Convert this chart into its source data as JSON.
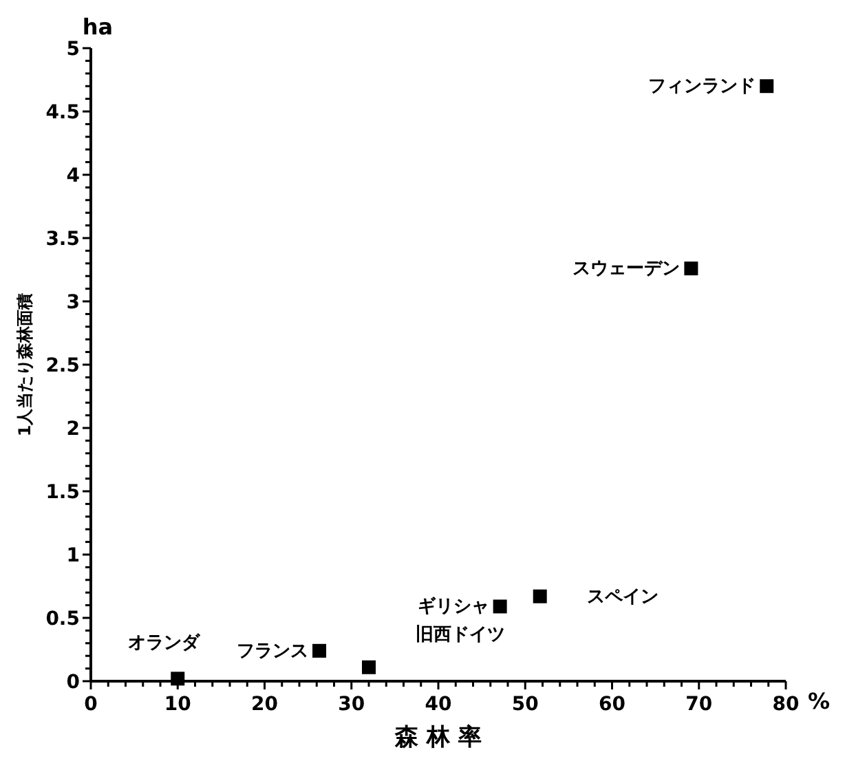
{
  "chart_data": {
    "type": "scatter",
    "xlabel": "森 林 率",
    "ylabel": "1人当たり森林面積",
    "series": [
      {
        "color": "#000000",
        "x": [
          77.8,
          69.1,
          51.7,
          47.1,
          26.3,
          32,
          10
        ],
        "values": [
          4.7,
          3.26,
          0.67,
          0.59,
          0.24,
          0.11,
          0.02
        ]
      }
    ],
    "marker": "square",
    "grid": false,
    "xlim": [
      0,
      80
    ],
    "ylim": [
      0,
      5
    ],
    "xticks": [
      0,
      {
        "value": 2,
        "label": null
      },
      {
        "value": 4,
        "label": null
      },
      {
        "value": 6,
        "label": null
      },
      {
        "value": 8,
        "label": null
      },
      10,
      {
        "value": 12,
        "label": null
      },
      {
        "value": 14,
        "label": null
      },
      {
        "value": 16,
        "label": null
      },
      {
        "value": 18,
        "label": null
      },
      20,
      {
        "value": 22,
        "label": null
      },
      {
        "value": 24,
        "label": null
      },
      {
        "value": 26,
        "label": null
      },
      {
        "value": 28,
        "label": null
      },
      30,
      {
        "value": 32,
        "label": null
      },
      {
        "value": 34,
        "label": null
      },
      {
        "value": 36,
        "label": null
      },
      {
        "value": 38,
        "label": null
      },
      40,
      {
        "value": 42,
        "label": null
      },
      {
        "value": 44,
        "label": null
      },
      {
        "value": 46,
        "label": null
      },
      {
        "value": 48,
        "label": null
      },
      50,
      {
        "value": 52,
        "label": null
      },
      {
        "value": 54,
        "label": null
      },
      {
        "value": 56,
        "label": null
      },
      {
        "value": 58,
        "label": null
      },
      60,
      {
        "value": 62,
        "label": null
      },
      {
        "value": 64,
        "label": null
      },
      {
        "value": 66,
        "label": null
      },
      {
        "value": 68,
        "label": null
      },
      70,
      {
        "value": 72,
        "label": null
      },
      {
        "value": 74,
        "label": null
      },
      {
        "value": 76,
        "label": null
      },
      {
        "value": 78,
        "label": null
      },
      80
    ],
    "yticks": [
      0,
      {
        "value": 0.1,
        "label": null
      },
      {
        "value": 0.2,
        "label": null
      },
      {
        "value": 0.3,
        "label": null
      },
      {
        "value": 0.4,
        "label": null
      },
      0.5,
      {
        "value": 0.6,
        "label": null
      },
      {
        "value": 0.7,
        "label": null
      },
      {
        "value": 0.8,
        "label": null
      },
      {
        "value": 0.9,
        "label": null
      },
      1,
      {
        "value": 1.1,
        "label": null
      },
      {
        "value": 1.2,
        "label": null
      },
      {
        "value": 1.3,
        "label": null
      },
      {
        "value": 1.4,
        "label": null
      },
      1.5,
      {
        "value": 1.6,
        "label": null
      },
      {
        "value": 1.7,
        "label": null
      },
      {
        "value": 1.8,
        "label": null
      },
      {
        "value": 1.9,
        "label": null
      },
      2,
      {
        "value": 2.1,
        "label": null
      },
      {
        "value": 2.2,
        "label": null
      },
      {
        "value": 2.3,
        "label": null
      },
      {
        "value": 2.4,
        "label": null
      },
      2.5,
      {
        "value": 2.6,
        "label": null
      },
      {
        "value": 2.7,
        "label": null
      },
      {
        "value": 2.8,
        "label": null
      },
      {
        "value": 2.9,
        "label": null
      },
      3,
      {
        "value": 3.1,
        "label": null
      },
      {
        "value": 3.2,
        "label": null
      },
      {
        "value": 3.3,
        "label": null
      },
      {
        "value": 3.4,
        "label": null
      },
      3.5,
      {
        "value": 3.6,
        "label": null
      },
      {
        "value": 3.7,
        "label": null
      },
      {
        "value": 3.8,
        "label": null
      },
      {
        "value": 3.9,
        "label": null
      },
      4,
      {
        "value": 4.1,
        "label": null
      },
      {
        "value": 4.2,
        "label": null
      },
      {
        "value": 4.3,
        "label": null
      },
      {
        "value": 4.4,
        "label": null
      },
      4.5,
      {
        "value": 4.6,
        "label": null
      },
      {
        "value": 4.7,
        "label": null
      },
      {
        "value": 4.8,
        "label": null
      },
      {
        "value": 4.9,
        "label": null
      },
      5
    ],
    "annotations": [
      {
        "text": "フィンランド",
        "x": 77.8,
        "y": 4.7
      },
      {
        "text": "スウェーデン",
        "x": 69.1,
        "y": 3.26
      },
      {
        "text": "スペイン",
        "x": 51.7,
        "y": 0.67
      },
      {
        "text": "ギリシャ",
        "x": 47.1,
        "y": 0.59
      },
      {
        "text": "フランス",
        "x": 26.3,
        "y": 0.24
      },
      {
        "text": "旧西ドイツ",
        "x": 32,
        "y": 0.11
      },
      {
        "text": "オランダ",
        "x": 10,
        "y": 0.02
      },
      "ha",
      "%"
    ]
  }
}
